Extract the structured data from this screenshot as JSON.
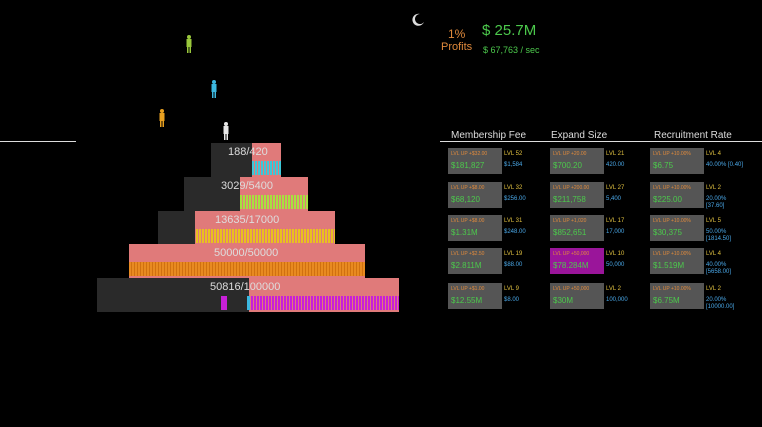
{
  "stats": {
    "percent": "1%",
    "profits_label": "Profits",
    "money": "$ 25.7M",
    "rate": "$ 67,763 / sec"
  },
  "colors": {
    "background": "#000000",
    "tier_fill": "#e07a7a",
    "tier_base": "#2a2a2a",
    "money_green": "#4cc94c",
    "level_orange": "#e08a3c",
    "info_blue": "#4aa8e8",
    "highlight_purple": "#9a159a"
  },
  "icons": [
    "moon-icon",
    "person-icon"
  ],
  "pyramid": {
    "tiers": [
      {
        "count": "188/420",
        "fill_fraction": 1.0,
        "crowd_color": "#3cc8d8"
      },
      {
        "count": "3029/5400",
        "fill_fraction": 1.0,
        "crowd_color": "#a8e040"
      },
      {
        "count": "13635/17000",
        "fill_fraction": 1.0,
        "crowd_color": "#e8c020"
      },
      {
        "count": "50000/50000",
        "fill_fraction": 1.0,
        "crowd_color": "#e88a20"
      },
      {
        "count": "50816/100000",
        "fill_fraction": 1.0,
        "crowd_color": "#c820d8"
      }
    ]
  },
  "upgrades": {
    "headers": [
      "Membership Fee",
      "Expand Size",
      "Recruitment Rate"
    ],
    "rows": [
      [
        {
          "btn": "LVL UP  +$32.00",
          "amount": "$181,827",
          "lvl": "LVL 52",
          "info": "$1,584"
        },
        {
          "btn": "LVL UP  +20.00",
          "amount": "$700.20",
          "lvl": "LVL 21",
          "info": "420.00"
        },
        {
          "btn": "LVL UP  +10.00%",
          "amount": "$6.75",
          "lvl": "LVL 4",
          "info": "40.00% [0.40]"
        }
      ],
      [
        {
          "btn": "LVL UP  +$8.00",
          "amount": "$68,120",
          "lvl": "LVL 32",
          "info": "$256.00"
        },
        {
          "btn": "LVL UP  +200.00",
          "amount": "$211,758",
          "lvl": "LVL 27",
          "info": "5,400"
        },
        {
          "btn": "LVL UP  +10.00%",
          "amount": "$225.00",
          "lvl": "LVL 2",
          "info": "20.00%",
          "info2": "[37.60]"
        }
      ],
      [
        {
          "btn": "LVL UP  +$8.00",
          "amount": "$1.31M",
          "lvl": "LVL 31",
          "info": "$248.00"
        },
        {
          "btn": "LVL UP  +1,020",
          "amount": "$852,651",
          "lvl": "LVL 17",
          "info": "17,000"
        },
        {
          "btn": "LVL UP  +10.00%",
          "amount": "$30,375",
          "lvl": "LVL 5",
          "info": "50.00%",
          "info2": "[1814.50]"
        }
      ],
      [
        {
          "btn": "LVL UP  +$2.50",
          "amount": "$2.811M",
          "lvl": "LVL 19",
          "info": "$88.00"
        },
        {
          "btn": "LVL UP  +50,000",
          "amount": "$78.284M",
          "lvl": "LVL 10",
          "info": "50,000",
          "highlight": true
        },
        {
          "btn": "LVL UP  +10.00%",
          "amount": "$1.519M",
          "lvl": "LVL 4",
          "info": "40.00%",
          "info2": "[5658.00]"
        }
      ],
      [
        {
          "btn": "LVL UP  +$1.00",
          "amount": "$12.55M",
          "lvl": "LVL 9",
          "info": "$8.00"
        },
        {
          "btn": "LVL UP  +50,000",
          "amount": "$30M",
          "lvl": "LVL 2",
          "info": "100,000"
        },
        {
          "btn": "LVL UP  +10.00%",
          "amount": "$6.75M",
          "lvl": "LVL 2",
          "info": "20.00%",
          "info2": "[10000.00]"
        }
      ]
    ]
  }
}
